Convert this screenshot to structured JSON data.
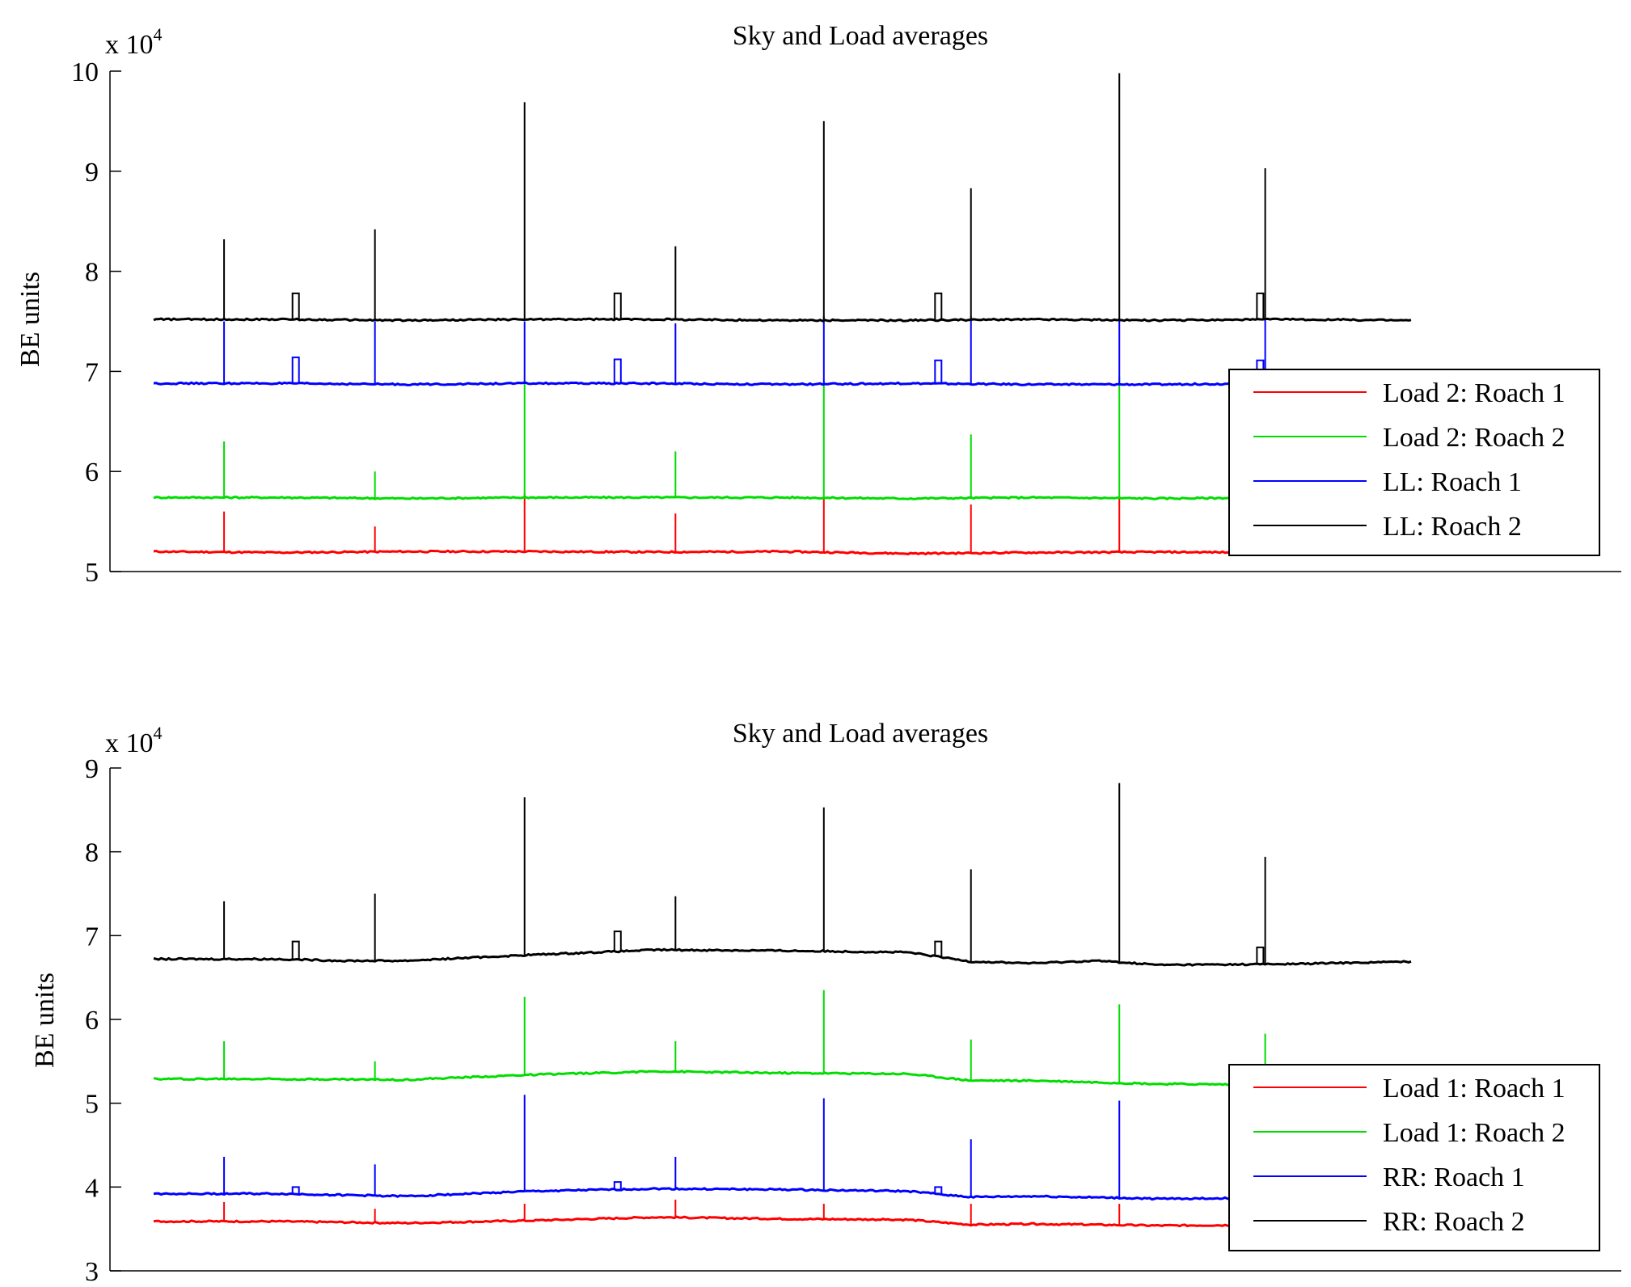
{
  "chart_data": [
    {
      "type": "line",
      "title": "Sky and Load averages",
      "ylabel": "BE units",
      "y_scale_label": "x 10",
      "y_scale_exponent": "4",
      "ylim": [
        50000,
        100000
      ],
      "yticks": [
        50000,
        60000,
        70000,
        80000,
        90000,
        100000
      ],
      "ytick_labels": [
        "5",
        "6",
        "7",
        "8",
        "9",
        "10"
      ],
      "xlim": [
        0,
        1000
      ],
      "legend_placement": "right",
      "spikes_x": [
        56,
        113,
        176,
        295,
        369,
        415,
        533,
        650,
        768,
        884
      ],
      "series": [
        {
          "name": "Load 2: Roach 1",
          "color": "#ff0000",
          "x": [
            0,
            100,
            200,
            300,
            400,
            500,
            600,
            700,
            800,
            900,
            1000
          ],
          "values": [
            52000,
            51900,
            52000,
            52000,
            51950,
            52000,
            51800,
            51900,
            51950,
            51900,
            52000
          ],
          "spikes": [
            [
              56,
              56000
            ],
            [
              176,
              54500
            ],
            [
              295,
              57800
            ],
            [
              415,
              55800
            ],
            [
              533,
              57500
            ],
            [
              650,
              56700
            ],
            [
              768,
              57300
            ]
          ]
        },
        {
          "name": "Load 2: Roach 2",
          "color": "#00dd00",
          "x": [
            0,
            100,
            200,
            300,
            400,
            500,
            600,
            700,
            800,
            900,
            1000
          ],
          "values": [
            57400,
            57400,
            57300,
            57400,
            57400,
            57400,
            57300,
            57400,
            57300,
            57400,
            57400
          ],
          "spikes": [
            [
              56,
              63000
            ],
            [
              176,
              60000
            ],
            [
              295,
              69000
            ],
            [
              415,
              62000
            ],
            [
              533,
              69000
            ],
            [
              650,
              63700
            ],
            [
              768,
              69500
            ]
          ]
        },
        {
          "name": "LL: Roach 1",
          "color": "#0000ff",
          "x": [
            0,
            100,
            200,
            300,
            400,
            500,
            600,
            700,
            800,
            900,
            1000
          ],
          "values": [
            68800,
            68800,
            68700,
            68800,
            68800,
            68700,
            68800,
            68700,
            68700,
            68800,
            68800
          ],
          "spikes": [
            [
              56,
              75000
            ],
            [
              176,
              75000
            ],
            [
              295,
              75000
            ],
            [
              415,
              74800
            ],
            [
              533,
              75500
            ],
            [
              650,
              75500
            ],
            [
              768,
              75300
            ],
            [
              884,
              75300
            ]
          ],
          "bumps": [
            [
              113,
              71400
            ],
            [
              369,
              71200
            ],
            [
              624,
              71100
            ],
            [
              880,
              71100
            ]
          ]
        },
        {
          "name": "LL: Roach 2",
          "color": "#000000",
          "x": [
            0,
            100,
            200,
            300,
            400,
            500,
            600,
            700,
            800,
            900,
            1000
          ],
          "values": [
            75200,
            75200,
            75100,
            75200,
            75200,
            75100,
            75100,
            75200,
            75100,
            75200,
            75100
          ],
          "spikes": [
            [
              56,
              83200
            ],
            [
              176,
              84200
            ],
            [
              295,
              96900
            ],
            [
              415,
              82500
            ],
            [
              533,
              95000
            ],
            [
              650,
              88300
            ],
            [
              768,
              99800
            ],
            [
              884,
              90300
            ]
          ],
          "bumps": [
            [
              113,
              77800
            ],
            [
              369,
              77800
            ],
            [
              624,
              77800
            ],
            [
              880,
              77800
            ]
          ]
        }
      ]
    },
    {
      "type": "line",
      "title": "Sky and Load averages",
      "ylabel": "BE units",
      "y_scale_label": "x 10",
      "y_scale_exponent": "4",
      "ylim": [
        30000,
        90000
      ],
      "yticks": [
        30000,
        40000,
        50000,
        60000,
        70000,
        80000,
        90000
      ],
      "ytick_labels": [
        "3",
        "4",
        "5",
        "6",
        "7",
        "8",
        "9"
      ],
      "xlim": [
        0,
        1000
      ],
      "legend_placement": "right",
      "series": [
        {
          "name": "Load 1: Roach 1",
          "color": "#ff0000",
          "x": [
            0,
            100,
            200,
            300,
            400,
            500,
            600,
            650,
            700,
            800,
            900,
            1000
          ],
          "values": [
            35900,
            35900,
            35700,
            36000,
            36400,
            36200,
            36100,
            35500,
            35600,
            35400,
            35500,
            35500
          ],
          "spikes": [
            [
              56,
              38200
            ],
            [
              176,
              37400
            ],
            [
              295,
              38000
            ],
            [
              415,
              38500
            ],
            [
              533,
              38000
            ],
            [
              650,
              38000
            ],
            [
              768,
              38000
            ]
          ]
        },
        {
          "name": "Load 1: Roach 2",
          "color": "#00dd00",
          "x": [
            0,
            100,
            200,
            300,
            400,
            500,
            600,
            650,
            700,
            800,
            900,
            1000
          ],
          "values": [
            52900,
            52900,
            52800,
            53400,
            53800,
            53600,
            53500,
            52700,
            52700,
            52300,
            52200,
            52200
          ],
          "spikes": [
            [
              56,
              57400
            ],
            [
              176,
              55000
            ],
            [
              295,
              62700
            ],
            [
              415,
              57400
            ],
            [
              533,
              63500
            ],
            [
              650,
              57600
            ],
            [
              768,
              61800
            ],
            [
              884,
              58300
            ]
          ]
        },
        {
          "name": "RR: Roach 1",
          "color": "#0000ff",
          "x": [
            0,
            100,
            200,
            300,
            400,
            500,
            600,
            650,
            700,
            800,
            900,
            1000
          ],
          "values": [
            39200,
            39200,
            38900,
            39500,
            39800,
            39700,
            39500,
            38800,
            38900,
            38600,
            38700,
            38700
          ],
          "spikes": [
            [
              56,
              43600
            ],
            [
              176,
              42700
            ],
            [
              295,
              51000
            ],
            [
              415,
              43600
            ],
            [
              533,
              50600
            ],
            [
              650,
              45700
            ],
            [
              768,
              50300
            ]
          ],
          "bumps": [
            [
              113,
              40000
            ],
            [
              369,
              40600
            ],
            [
              624,
              40000
            ]
          ]
        },
        {
          "name": "RR: Roach 2",
          "color": "#000000",
          "x": [
            0,
            100,
            150,
            200,
            300,
            400,
            500,
            600,
            650,
            700,
            750,
            800,
            900,
            1000
          ],
          "values": [
            67200,
            67200,
            67000,
            67000,
            67700,
            68300,
            68200,
            68000,
            66900,
            66700,
            67000,
            66500,
            66600,
            66900
          ],
          "spikes": [
            [
              56,
              74100
            ],
            [
              176,
              75000
            ],
            [
              295,
              86500
            ],
            [
              415,
              74700
            ],
            [
              533,
              85300
            ],
            [
              650,
              77900
            ],
            [
              768,
              88200
            ],
            [
              884,
              79400
            ]
          ],
          "bumps": [
            [
              113,
              69300
            ],
            [
              369,
              70500
            ],
            [
              624,
              69300
            ],
            [
              880,
              68600
            ]
          ]
        }
      ]
    }
  ]
}
